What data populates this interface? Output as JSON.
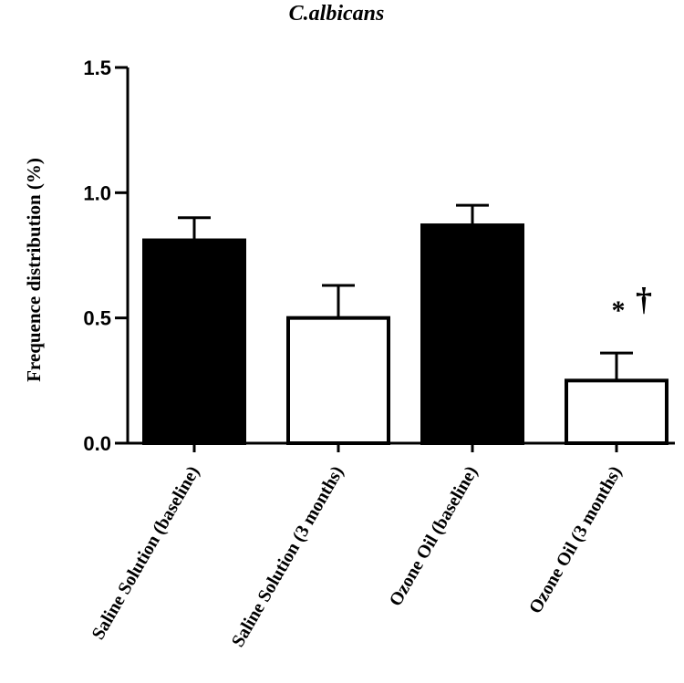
{
  "chart_data": {
    "type": "bar",
    "title": "C.albicans",
    "ylabel": "Frequence distribution (%)",
    "xlabel": "",
    "ylim": [
      0,
      1.5
    ],
    "yticks": [
      "0.0",
      "0.5",
      "1.0",
      "1.5"
    ],
    "bars": [
      {
        "category": "Saline Solution (baseline)",
        "value": 0.81,
        "error": 0.09,
        "fill": "#000000"
      },
      {
        "category": "Saline Solution (3 months)",
        "value": 0.5,
        "error": 0.13,
        "fill": "#ffffff"
      },
      {
        "category": "Ozone Oil (baseline)",
        "value": 0.87,
        "error": 0.08,
        "fill": "#000000"
      },
      {
        "category": "Ozone Oil (3 months)",
        "value": 0.25,
        "error": 0.11,
        "fill": "#ffffff"
      }
    ],
    "annotations": [
      {
        "text": "*",
        "bar_index": 3
      },
      {
        "text": "†",
        "bar_index": 3
      }
    ]
  }
}
